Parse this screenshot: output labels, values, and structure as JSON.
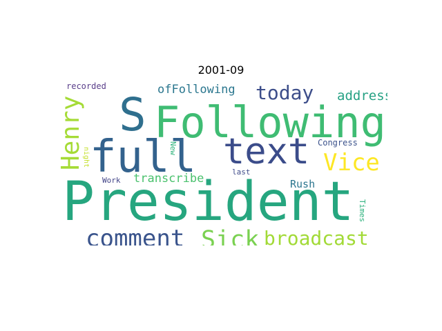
{
  "title": "2001-09",
  "words": [
    {
      "text": "President",
      "color": "#26a67f"
    },
    {
      "text": "Following",
      "color": "#3fbc73"
    },
    {
      "text": "S",
      "color": "#2f6f8e"
    },
    {
      "text": "full",
      "color": "#33628d"
    },
    {
      "text": "text",
      "color": "#3b4c8a"
    },
    {
      "text": "comment",
      "color": "#3a548c"
    },
    {
      "text": "Sick",
      "color": "#7ad151"
    },
    {
      "text": "broadcast",
      "color": "#a2da37"
    },
    {
      "text": "Henry",
      "color": "#a5db36"
    },
    {
      "text": "Vice",
      "color": "#fde725"
    },
    {
      "text": "today",
      "color": "#3d4e8a"
    },
    {
      "text": "ofFollowing",
      "color": "#2a768e"
    },
    {
      "text": "address",
      "color": "#26a184"
    },
    {
      "text": "transcribe",
      "color": "#4ac16d"
    },
    {
      "text": "Rush",
      "color": "#2b758e"
    },
    {
      "text": "recorded",
      "color": "#5a3e8a"
    },
    {
      "text": "Congress",
      "color": "#3b528b"
    },
    {
      "text": "New",
      "color": "#2fb47c"
    },
    {
      "text": "night",
      "color": "#c2df23"
    },
    {
      "text": "last",
      "color": "#3e4a89"
    },
    {
      "text": "Work",
      "color": "#404387"
    },
    {
      "text": "Times",
      "color": "#2db27d"
    }
  ]
}
